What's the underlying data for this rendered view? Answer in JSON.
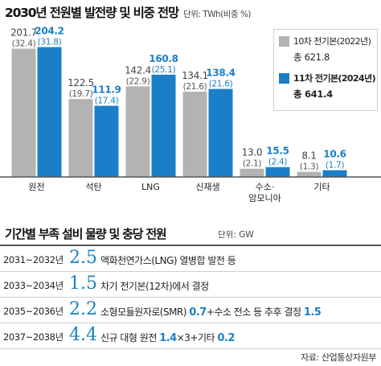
{
  "header": {
    "title": "2030년 전원별 발전량 및 비중 전망",
    "unit": "단위: TWh(비중 %)"
  },
  "colors": {
    "plan10": "#b3b3b3",
    "plan11": "#1a7fc8",
    "axis": "#555555",
    "accent": "#1a7fc8"
  },
  "legend": [
    {
      "name": "10차 전기본(2022년)",
      "total": "총 621.8"
    },
    {
      "name": "11차 전기본(2024년)",
      "total": "총 641.4"
    }
  ],
  "chart_data": {
    "type": "bar",
    "categories": [
      "원전",
      "석탄",
      "LNG",
      "신재생",
      "수소·\n암모니아",
      "기타"
    ],
    "series": [
      {
        "name": "10차 전기본(2022년)",
        "values": [
          201.7,
          122.5,
          142.4,
          134.1,
          13.0,
          8.1
        ],
        "shares": [
          "32.4",
          "19.7",
          "22.9",
          "21.6",
          "2.1",
          "1.3"
        ]
      },
      {
        "name": "11차 전기본(2024년)",
        "values": [
          204.2,
          111.9,
          160.8,
          138.4,
          15.5,
          10.6
        ],
        "shares": [
          "31.8",
          "17.4",
          "25.1",
          "21.6",
          "2.4",
          "1.7"
        ]
      }
    ],
    "title": "2030년 전원별 발전량 및 비중 전망",
    "ylabel": "",
    "xlabel": "",
    "ylim": [
      0,
      215
    ],
    "grid": false,
    "legend_position": "top-right"
  },
  "section2": {
    "title": "기간별 부족 설비 물량 및 충당 전원",
    "unit": "단위: GW",
    "rows": [
      {
        "period": "2031~2032년",
        "value": "2.5",
        "desc": "액화천연가스(LNG) 열병합 발전 등"
      },
      {
        "period": "2033~2034년",
        "value": "1.5",
        "desc": "차기 전기본(12차)에서 결정"
      },
      {
        "period": "2035~2036년",
        "value": "2.2",
        "desc": "소형모듈원자로(SMR)",
        "desc_num": "0.7",
        "desc2": "+수소 전소 등 추후 결정",
        "desc_num2": "1.5"
      },
      {
        "period": "2037~2038년",
        "value": "4.4",
        "desc": "신규 대형 원전",
        "desc_num": "1.4",
        "desc2": "×3+기타",
        "desc_num2": "0.2"
      }
    ]
  },
  "source": "자료: 산업통상자원부"
}
